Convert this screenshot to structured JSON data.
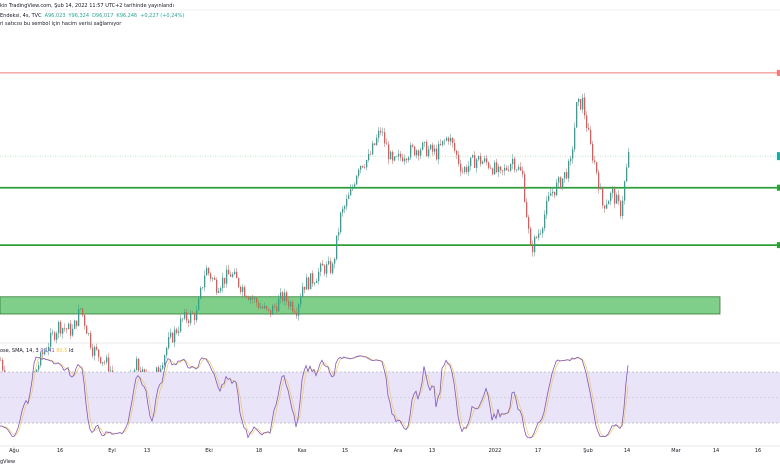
{
  "header": {
    "published_line": "kin TradingView.com, Şub 14, 2022 11:57 UTC+2 tarihinde yayınlandı",
    "symbol_line": {
      "name": "Endeksi, 4s, TVC",
      "open": "A96,023",
      "high": "Y96,324",
      "low": "D96,017",
      "close": "K96,246",
      "change": "+0,227 (+0,24%)"
    },
    "volume_note": "ri satıcısı bu sembol için hacim verisi sağlamıyor"
  },
  "indicator": {
    "label_prefix": "ose, SMA, 14, 3",
    "val1": "99,41",
    "val2": "80,5",
    "label_suffix": "ld"
  },
  "watermark": "gView",
  "colors": {
    "up": "#26a69a",
    "down": "#ef5350",
    "support_line": "#2e9e3a",
    "zone_fill": "#7fcf8a",
    "resistance_line": "#f07a7a",
    "stoch_k": "#7e57c2",
    "stoch_d": "#f5c542",
    "stoch_band": "#e9e4f7"
  },
  "chart_data": [
    {
      "type": "candlestick",
      "x_tick_labels": [
        "Ağu",
        "16",
        "Eyl",
        "13",
        "Eki",
        "18",
        "Kas",
        "15",
        "Ara",
        "13",
        "2022",
        "17",
        "Şub",
        "14",
        "Mar",
        "14",
        "16"
      ],
      "price_levels": {
        "resistance": 97.7,
        "current": 96.25,
        "support_1": 95.7,
        "support_2": 94.7,
        "zone_top": 93.8,
        "zone_bottom": 93.5
      },
      "path_points": [
        [
          0,
          92.7
        ],
        [
          14,
          91.9
        ],
        [
          28,
          92.2
        ],
        [
          42,
          92.8
        ],
        [
          58,
          93.3
        ],
        [
          72,
          93.2
        ],
        [
          80,
          93.6
        ],
        [
          92,
          92.9
        ],
        [
          108,
          92.6
        ],
        [
          122,
          92.0
        ],
        [
          136,
          92.6
        ],
        [
          150,
          92.2
        ],
        [
          168,
          93.0
        ],
        [
          182,
          93.4
        ],
        [
          196,
          93.5
        ],
        [
          205,
          94.3
        ],
        [
          216,
          94.0
        ],
        [
          230,
          94.2
        ],
        [
          245,
          93.9
        ],
        [
          256,
          93.7
        ],
        [
          268,
          93.5
        ],
        [
          282,
          93.8
        ],
        [
          296,
          93.6
        ],
        [
          302,
          94.0
        ],
        [
          312,
          94.1
        ],
        [
          322,
          94.3
        ],
        [
          332,
          94.3
        ],
        [
          340,
          95.2
        ],
        [
          350,
          95.6
        ],
        [
          358,
          96.1
        ],
        [
          368,
          96.2
        ],
        [
          380,
          96.7
        ],
        [
          392,
          96.1
        ],
        [
          404,
          96.3
        ],
        [
          420,
          96.4
        ],
        [
          436,
          96.3
        ],
        [
          448,
          96.6
        ],
        [
          462,
          96.0
        ],
        [
          476,
          96.2
        ],
        [
          490,
          96.1
        ],
        [
          500,
          95.9
        ],
        [
          512,
          96.2
        ],
        [
          522,
          95.9
        ],
        [
          530,
          94.6
        ],
        [
          540,
          95.0
        ],
        [
          550,
          95.6
        ],
        [
          560,
          95.8
        ],
        [
          570,
          96.1
        ],
        [
          576,
          97.1
        ],
        [
          582,
          97.2
        ],
        [
          590,
          96.4
        ],
        [
          596,
          96.0
        ],
        [
          602,
          95.4
        ],
        [
          612,
          95.6
        ],
        [
          620,
          95.3
        ],
        [
          628,
          96.25
        ]
      ],
      "stochastic": {
        "overbought": 80,
        "oversold": 20,
        "k_last": 99.41,
        "d_last": 80.5
      }
    }
  ]
}
